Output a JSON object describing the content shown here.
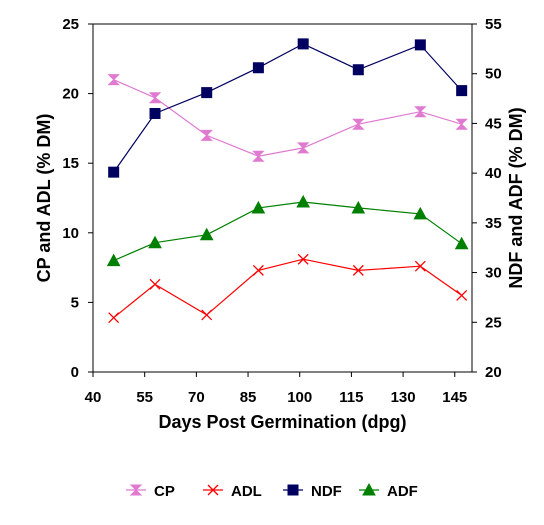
{
  "chart_data": {
    "type": "line",
    "xlabel": "Days Post Germination (dpg)",
    "ylabel": "CP and ADL (% DM)",
    "y2label": "NDF and ADF (% DM)",
    "xlim": [
      40,
      150
    ],
    "xticks": [
      40,
      55,
      70,
      85,
      100,
      115,
      130,
      145
    ],
    "ylim": [
      0,
      25
    ],
    "yticks": [
      0,
      5,
      10,
      15,
      20,
      25
    ],
    "y2lim": [
      20,
      55
    ],
    "y2ticks": [
      20,
      25,
      30,
      35,
      40,
      45,
      50,
      55
    ],
    "grid": false,
    "legend_position": "bottom",
    "series": [
      {
        "name": "CP",
        "axis": "left",
        "color": "#e07ad0",
        "marker": "hourglass",
        "x": [
          46,
          58,
          73,
          88,
          101,
          117,
          135,
          147
        ],
        "values": [
          21.0,
          19.7,
          17.0,
          15.5,
          16.1,
          17.8,
          18.7,
          17.8
        ]
      },
      {
        "name": "ADL",
        "axis": "left",
        "color": "#ff0000",
        "marker": "x",
        "x": [
          46,
          58,
          73,
          88,
          101,
          117,
          135,
          147
        ],
        "values": [
          3.9,
          6.3,
          4.1,
          7.3,
          8.1,
          7.3,
          7.6,
          5.5
        ]
      },
      {
        "name": "NDF",
        "axis": "right",
        "color": "#000060",
        "marker": "square",
        "x": [
          46,
          58,
          73,
          88,
          101,
          117,
          135,
          147
        ],
        "values": [
          40.1,
          46.0,
          48.1,
          50.6,
          53.0,
          50.4,
          52.9,
          48.3
        ]
      },
      {
        "name": "ADF",
        "axis": "right",
        "color": "#008000",
        "marker": "triangle",
        "x": [
          46,
          58,
          73,
          88,
          101,
          117,
          135,
          147
        ],
        "values": [
          31.2,
          33.0,
          33.8,
          36.5,
          37.1,
          36.5,
          35.9,
          32.9
        ]
      }
    ]
  }
}
